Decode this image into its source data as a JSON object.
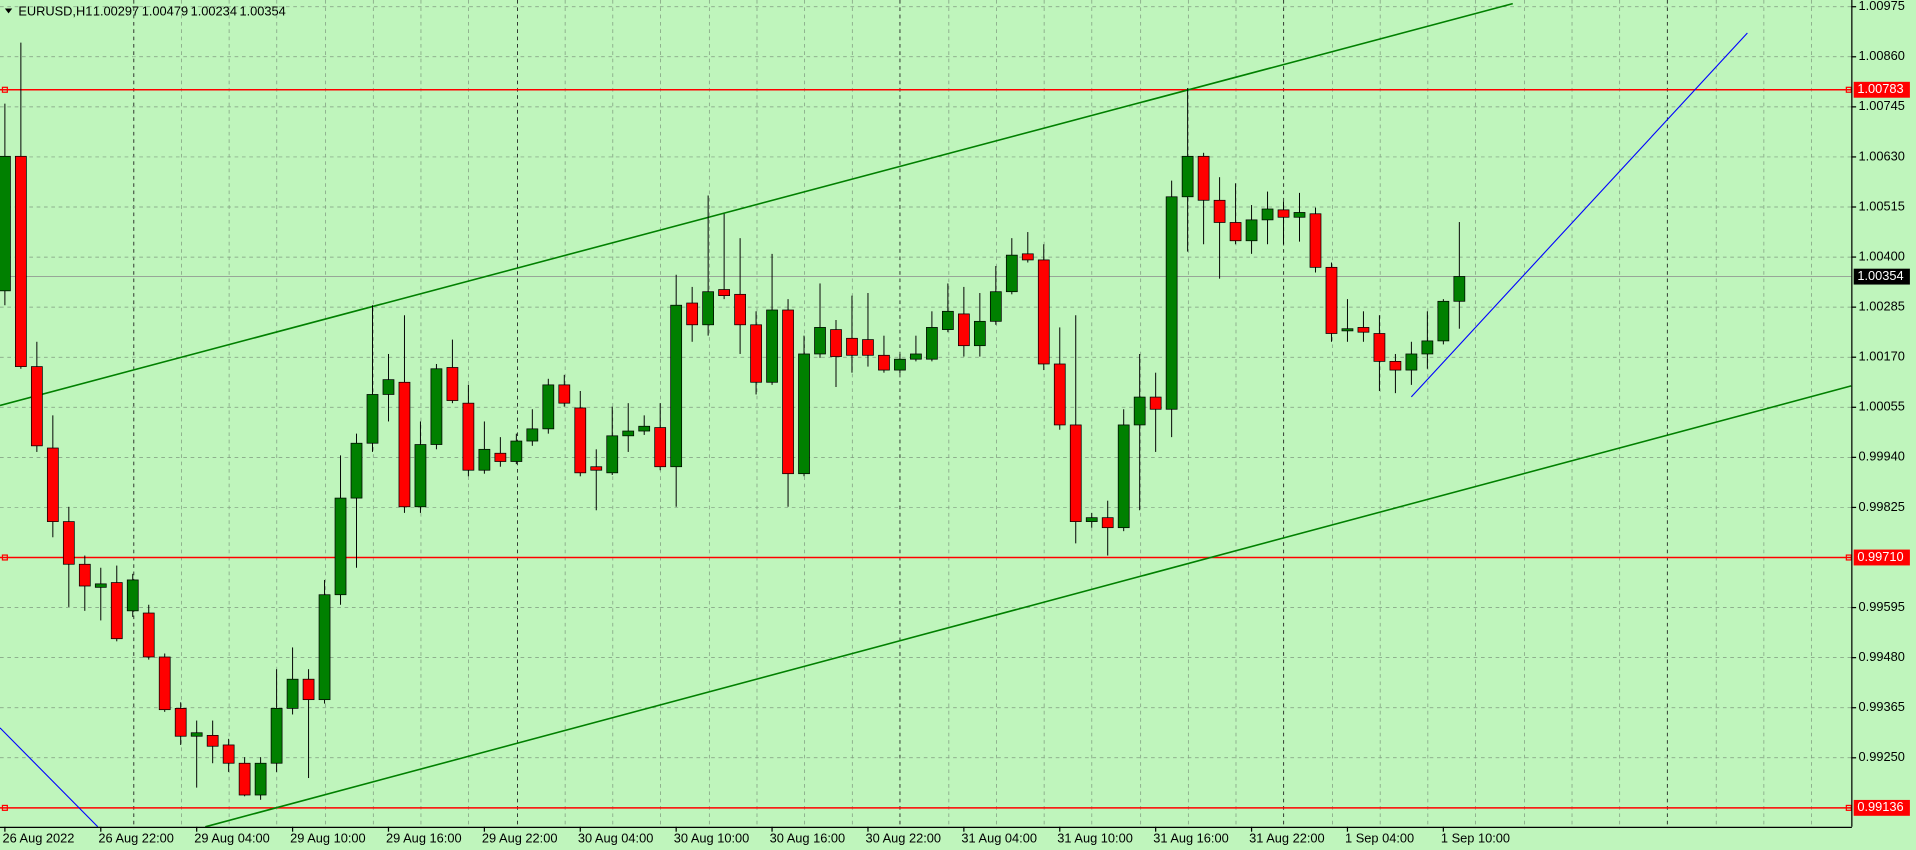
{
  "chart_data": {
    "type": "candlestick",
    "title": "EURUSD,H1",
    "categories": [
      "26 Aug 2022",
      null,
      null,
      null,
      null,
      null,
      "26 Aug 22:00",
      null,
      null,
      null,
      null,
      null,
      "29 Aug 04:00",
      null,
      null,
      null,
      null,
      null,
      "29 Aug 10:00",
      null,
      null,
      null,
      null,
      null,
      "29 Aug 16:00",
      null,
      null,
      null,
      null,
      null,
      "29 Aug 22:00",
      null,
      null,
      null,
      null,
      null,
      "30 Aug 04:00",
      null,
      null,
      null,
      null,
      null,
      "30 Aug 10:00",
      null,
      null,
      null,
      null,
      null,
      "30 Aug 16:00",
      null,
      null,
      null,
      null,
      null,
      "30 Aug 22:00",
      null,
      null,
      null,
      null,
      null,
      "31 Aug 04:00",
      null,
      null,
      null,
      null,
      null,
      "31 Aug 10:00",
      null,
      null,
      null,
      null,
      null,
      "31 Aug 16:00",
      null,
      null,
      null,
      null,
      null,
      "31 Aug 22:00",
      null,
      null,
      null,
      null,
      null,
      "1 Sep 04:00",
      null,
      null,
      null,
      null,
      null,
      "1 Sep 10:00",
      null
    ],
    "open": [
      1.00321,
      1.0063,
      1.00147,
      0.9996,
      0.99791,
      0.99693,
      0.9964,
      0.99651,
      0.99586,
      0.99581,
      0.9948,
      0.99362,
      0.99298,
      0.993,
      0.99278,
      0.99236,
      0.99163,
      0.99236,
      0.99362,
      0.99429,
      0.99382,
      0.99623,
      0.99845,
      0.99971,
      1.00083,
      1.00111,
      0.99825,
      0.99968,
      1.00145,
      1.00063,
      0.99909,
      0.99948,
      0.99929,
      0.99976,
      1.00004,
      1.00105,
      1.00052,
      0.99917,
      0.99903,
      0.99988,
      0.99999,
      1.00007,
      0.99917,
      1.00293,
      1.00243,
      1.00324,
      1.00313,
      1.00243,
      1.00111,
      1.00277,
      0.99901,
      1.00176,
      1.00232,
      1.00212,
      1.00209,
      1.00173,
      1.00139,
      1.00164,
      1.00164,
      1.00232,
      1.00268,
      1.00195,
      1.00251,
      1.00319,
      1.00406,
      1.00392,
      1.00153,
      1.00013,
      0.99791,
      0.998,
      0.99777,
      1.00013,
      1.00077,
      1.00049,
      1.00537,
      1.0063,
      1.00529,
      1.00478,
      1.00436,
      1.00484,
      1.00507,
      1.0049,
      1.00498,
      1.00375,
      1.00229,
      1.00237,
      1.00223,
      1.00159,
      1.00139,
      1.00176,
      1.00206,
      1.00297
    ],
    "high": [
      1.00751,
      1.00891,
      1.00204,
      1.00035,
      0.99825,
      0.99713,
      0.99685,
      0.9969,
      0.99671,
      0.996,
      0.99488,
      0.99376,
      0.99334,
      0.99334,
      0.99292,
      0.9925,
      0.9925,
      0.99452,
      0.99502,
      0.99452,
      0.99657,
      0.99943,
      0.99993,
      1.00288,
      1.00176,
      1.00265,
      1.00021,
      1.00153,
      1.00209,
      1.00105,
      1.00021,
      0.99985,
      0.99993,
      1.00049,
      1.00119,
      1.00128,
      1.00091,
      0.99957,
      1.00055,
      1.00063,
      1.00035,
      1.00063,
      1.00358,
      1.0033,
      1.0054,
      1.00498,
      1.00442,
      1.00274,
      1.00406,
      1.00302,
      1.00218,
      1.00338,
      1.00254,
      1.0031,
      1.00316,
      1.00218,
      1.00176,
      1.00218,
      1.00274,
      1.00338,
      1.0033,
      1.00316,
      1.00378,
      1.00442,
      1.00456,
      1.00428,
      1.00237,
      1.00265,
      0.99811,
      0.99839,
      1.00049,
      1.00176,
      1.00133,
      1.00574,
      1.00787,
      1.00638,
      1.00582,
      1.00568,
      1.00518,
      1.00549,
      1.00526,
      1.00546,
      1.00512,
      1.00386,
      1.00302,
      1.00274,
      1.00265,
      1.00176,
      1.00204,
      1.00274,
      1.00302,
      1.00479
    ],
    "low": [
      1.00288,
      1.00142,
      0.99951,
      0.99755,
      0.99595,
      0.99586,
      0.99564,
      0.99516,
      0.99572,
      0.99474,
      0.99354,
      0.99278,
      0.9918,
      0.99236,
      0.99216,
      0.9916,
      0.99152,
      0.99216,
      0.99348,
      0.99202,
      0.99373,
      0.996,
      0.99685,
      0.99951,
      1.00021,
      0.99811,
      0.99811,
      0.99957,
      1.00063,
      0.99895,
      0.99901,
      0.99917,
      0.99923,
      0.99965,
      0.99993,
      1.00055,
      0.99895,
      0.99817,
      0.99898,
      0.99951,
      0.9999,
      0.99909,
      0.99825,
      1.00204,
      1.00218,
      1.00302,
      1.00176,
      1.00083,
      1.00105,
      0.99825,
      0.99895,
      1.00167,
      1.001,
      1.00133,
      1.00147,
      1.00133,
      1.00131,
      1.00159,
      1.00159,
      1.00226,
      1.0017,
      1.0017,
      1.00243,
      1.00313,
      1.00386,
      1.00139,
      1.00002,
      0.99741,
      0.99777,
      0.99713,
      0.99769,
      0.99817,
      0.99951,
      0.99985,
      1.00411,
      1.00428,
      1.00349,
      1.00428,
      1.00406,
      1.00428,
      1.00428,
      1.00434,
      1.00363,
      1.00204,
      1.00204,
      1.00204,
      1.00091,
      1.00086,
      1.00105,
      1.00142,
      1.00198,
      1.00234
    ],
    "close": [
      1.0063,
      1.00147,
      0.99965,
      0.99791,
      0.99693,
      0.99643,
      0.99648,
      0.99522,
      0.99657,
      0.9948,
      0.99359,
      0.99298,
      0.99306,
      0.99275,
      0.99236,
      0.99163,
      0.99236,
      0.99362,
      0.99429,
      0.99382,
      0.99623,
      0.99845,
      0.99971,
      1.00083,
      1.00117,
      0.99825,
      0.99968,
      1.00142,
      1.00069,
      0.99909,
      0.99957,
      0.99929,
      0.99976,
      1.00004,
      1.00105,
      1.00063,
      0.99903,
      0.99909,
      0.99988,
      0.99999,
      1.0001,
      0.99917,
      1.00288,
      1.00243,
      1.00319,
      1.0031,
      1.00243,
      1.00111,
      1.00277,
      0.99901,
      1.00176,
      1.00237,
      1.0017,
      1.00173,
      1.00173,
      1.00139,
      1.00164,
      1.00176,
      1.00237,
      1.00274,
      1.00195,
      1.00251,
      1.00319,
      1.00403,
      1.00392,
      1.00153,
      1.00013,
      0.99791,
      0.998,
      0.99777,
      1.00013,
      1.00077,
      1.00049,
      1.00537,
      1.0063,
      1.00529,
      1.00478,
      1.00436,
      1.00484,
      1.00509,
      1.0049,
      1.00501,
      1.00375,
      1.00223,
      1.00234,
      1.00226,
      1.00159,
      1.00139,
      1.00176,
      1.00206,
      1.00297,
      1.00354
    ],
    "up_color": "#008000",
    "down_color": "#ff0000",
    "ylim": [
      0.9909,
      1.00989
    ],
    "yticks": [
      1.00975,
      {
        "value": 1.0086,
        "label": "1.00860"
      },
      1.00745,
      {
        "value": 1.0063,
        "label": "1.00630"
      },
      1.00515,
      {
        "value": 1.004,
        "label": "1.00400"
      },
      1.00285,
      {
        "value": 1.0017,
        "label": "1.00170"
      },
      1.00055,
      {
        "value": 0.9994,
        "label": "0.99940"
      },
      0.99825,
      0.99595,
      {
        "value": 0.9948,
        "label": "0.99480"
      },
      0.99365,
      {
        "value": 0.9925,
        "label": "0.99250"
      }
    ],
    "grid": true,
    "hlines": [
      1.00783,
      {
        "value": 0.9971,
        "label": "0.99710"
      },
      0.99136
    ],
    "hline_color": "#ff0000"
  }
}
